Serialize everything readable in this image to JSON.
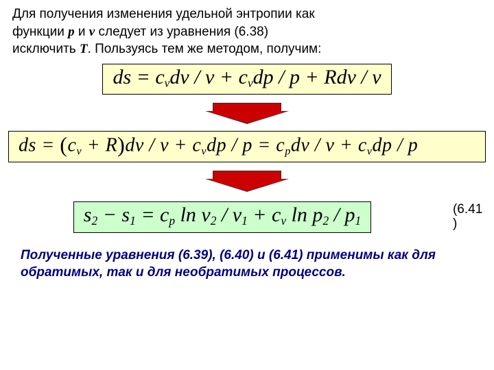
{
  "colors": {
    "eq_bg_yellow": "#ffffcc",
    "eq_bg_green": "#ccffcc",
    "eq_border": "#000000",
    "arrow_fill": "#cc0000",
    "arrow_border": "#333333",
    "conclusion_color": "#000080",
    "text_color": "#000000",
    "background": "#ffffff"
  },
  "typography": {
    "body_family": "Verdana",
    "equation_family": "Times New Roman",
    "intro_fontsize_pt": 14,
    "equation_fontsize_pt": 22,
    "conclusion_fontsize_pt": 14
  },
  "intro": {
    "line1": "Для получения изменения удельной энтропии как",
    "line2a": "функции ",
    "var_p": "p",
    "line2b": " и ",
    "var_v": "v",
    "line2c": " следует из уравнения (6.38)",
    "line3a": "исключить ",
    "var_T": "T",
    "line3b": ". Пользуясь тем же методом, получим:"
  },
  "equations": {
    "eq1": {
      "text_parts": [
        "ds = c",
        "v",
        "dv / v + c",
        "v",
        "dp / p + Rdv / v"
      ],
      "bg": "yellow"
    },
    "eq2": {
      "text_parts": [
        "ds = ",
        "(",
        "c",
        "v",
        " + R",
        ")",
        "dv / v + c",
        "v",
        "dp / p = c",
        "p",
        "dv / v + c",
        "v",
        "dp / p"
      ],
      "bg": "yellow"
    },
    "eq3": {
      "text_parts": [
        "s",
        "2",
        " − s",
        "1",
        " = c",
        "p",
        " ln v",
        "2",
        " / v",
        "1",
        " + c",
        "v",
        " ln p",
        "2",
        " / p",
        "1"
      ],
      "bg": "green",
      "label_a": "(6.41",
      "label_b": ")"
    }
  },
  "conclusion": {
    "text": "Полученные уравнения (6.39), (6.40) и (6.41) применимы как для обратимых, так и для необратимых процессов."
  }
}
